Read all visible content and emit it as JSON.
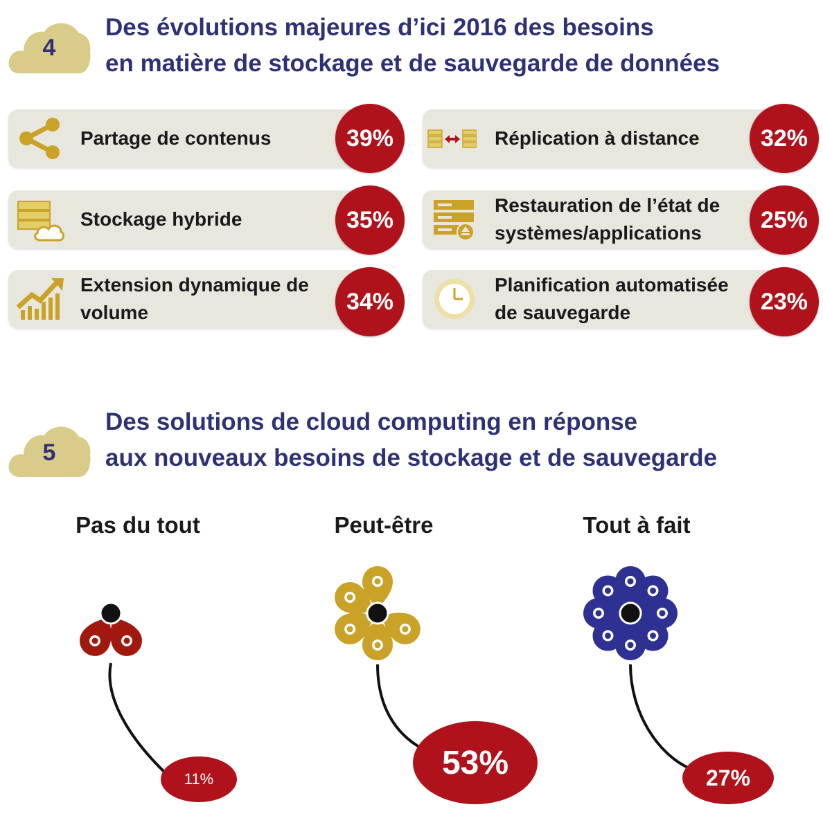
{
  "section4": {
    "number": "4",
    "title_line1": "Des évolutions majeures d’ici 2016 des besoins",
    "title_line2": "en matière de stockage et de sauvegarde de données"
  },
  "needs": [
    {
      "icon": "share-icon",
      "label": "Partage de contenus",
      "percent": "39%"
    },
    {
      "icon": "server-cloud-icon",
      "label": "Stockage hybride",
      "percent": "35%"
    },
    {
      "icon": "growth-chart-icon",
      "label": "Extension dynamique de volume",
      "percent": "34%"
    },
    {
      "icon": "replication-icon",
      "label": "Réplication à distance",
      "percent": "32%"
    },
    {
      "icon": "server-restore-icon",
      "label": "Restauration de l’état de systèmes/applications",
      "percent": "25%"
    },
    {
      "icon": "clock-icon",
      "label": "Planification automatisée de sauvegarde",
      "percent": "23%"
    }
  ],
  "section5": {
    "number": "5",
    "title_line1": "Des solutions de cloud computing en réponse",
    "title_line2": "aux nouveaux besoins de stockage et de sauvegarde"
  },
  "colors": {
    "title": "#2e3175",
    "badge_cloud": "#d9cc8a",
    "accent_red": "#b0121b",
    "gold": "#c9a227",
    "dark_red": "#a0180e",
    "navy": "#2e3192",
    "card_bg": "#e8e7de"
  },
  "chart_data": {
    "type": "pictogram",
    "categories": [
      "Pas du tout",
      "Peut-être",
      "Tout à fait"
    ],
    "values": [
      11,
      53,
      27
    ],
    "labels": [
      "11%",
      "53%",
      "27%"
    ],
    "petals": [
      2,
      5,
      8
    ],
    "colors": [
      "#a0180e",
      "#c9a227",
      "#2e3192"
    ]
  }
}
